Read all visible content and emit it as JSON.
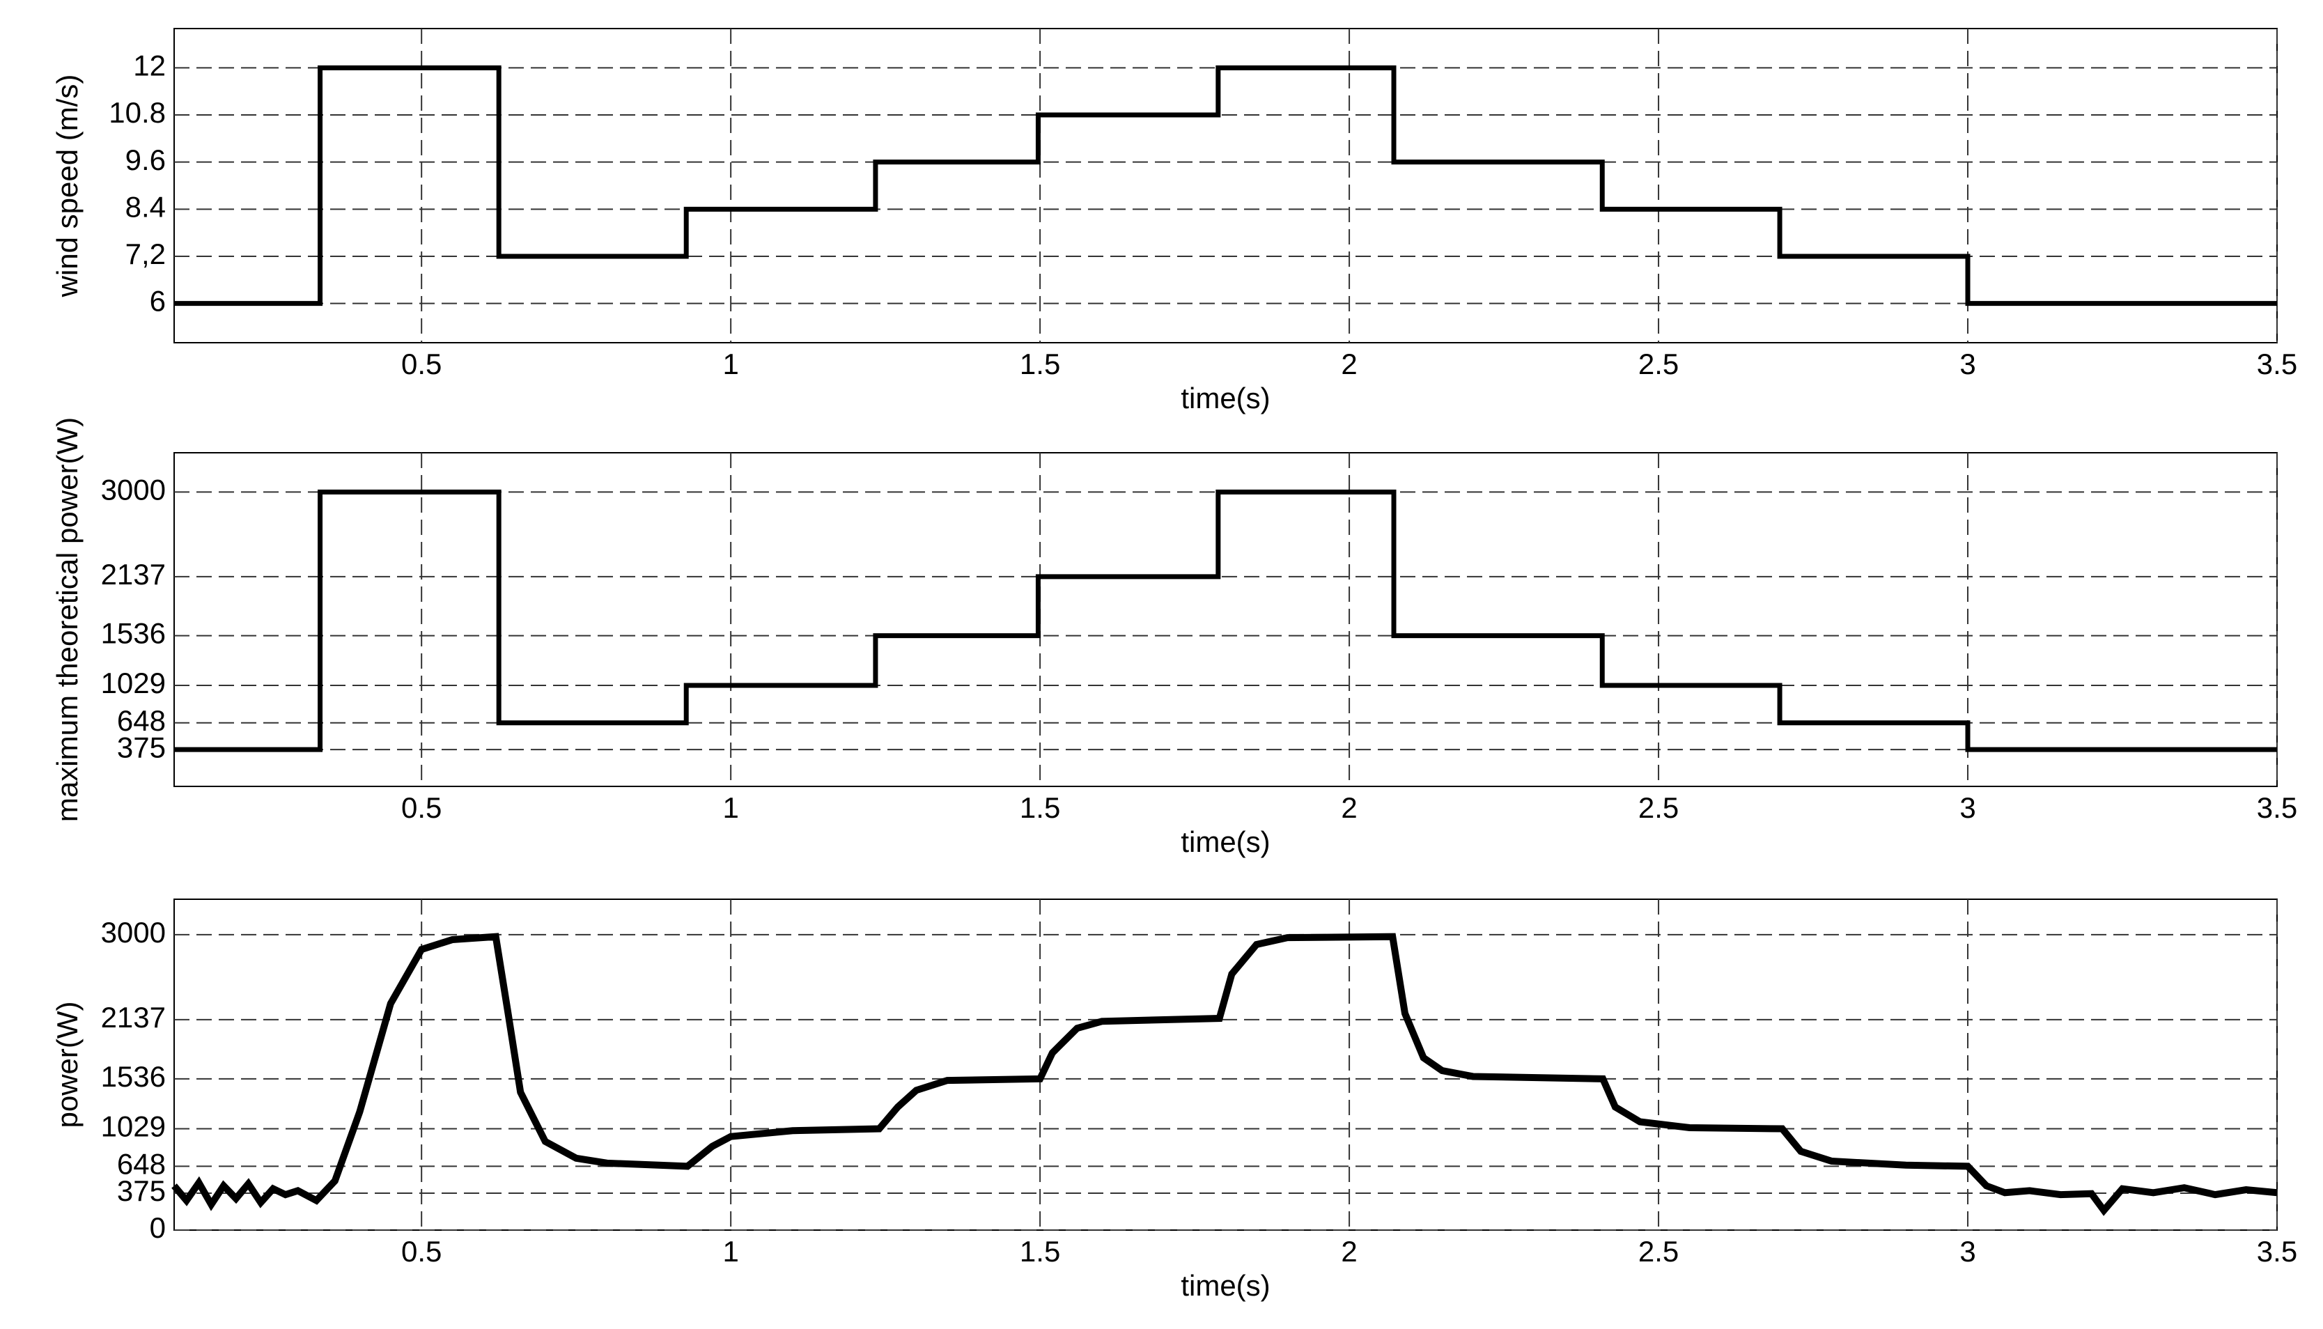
{
  "chart_data": [
    {
      "type": "line",
      "xlabel": "time(s)",
      "ylabel": "wind speed (m/s)",
      "grid": true,
      "xlim": [
        0.1,
        3.5
      ],
      "xticks": [
        0.5,
        1,
        1.5,
        2,
        2.5,
        3,
        3.5
      ],
      "ylim": [
        5,
        13
      ],
      "yticks": [
        6,
        {
          "value": 7.2,
          "label": "7,2"
        },
        8.4,
        9.6,
        10.8,
        12
      ],
      "x": [
        0.1,
        0.336,
        0.336,
        0.625,
        0.625,
        0.928,
        0.928,
        1.234,
        1.234,
        1.497,
        1.497,
        1.788,
        1.788,
        2.072,
        2.072,
        2.409,
        2.409,
        2.696,
        2.696,
        3.0,
        3.0,
        3.5
      ],
      "series": [
        {
          "color": "#000000",
          "values": [
            6,
            6,
            12,
            12,
            7.2,
            7.2,
            8.4,
            8.4,
            9.6,
            9.6,
            10.8,
            10.8,
            12,
            12,
            9.6,
            9.6,
            8.4,
            8.4,
            7.2,
            7.2,
            6,
            6
          ]
        }
      ]
    },
    {
      "type": "line",
      "xlabel": "time(s)",
      "ylabel": "maximum theoretical power(W)",
      "grid": true,
      "xlim": [
        0.1,
        3.5
      ],
      "xticks": [
        0.5,
        1,
        1.5,
        2,
        2.5,
        3,
        3.5
      ],
      "ylim": [
        0,
        3400
      ],
      "yticks": [
        375,
        648,
        1029,
        1536,
        2137,
        3000
      ],
      "x": [
        0.1,
        0.336,
        0.336,
        0.625,
        0.625,
        0.928,
        0.928,
        1.234,
        1.234,
        1.497,
        1.497,
        1.788,
        1.788,
        2.072,
        2.072,
        2.409,
        2.409,
        2.696,
        2.696,
        3.0,
        3.0,
        3.5
      ],
      "series": [
        {
          "color": "#000000",
          "values": [
            375,
            375,
            3000,
            3000,
            648,
            648,
            1029,
            1029,
            1536,
            1536,
            2137,
            2137,
            3000,
            3000,
            1536,
            1536,
            1029,
            1029,
            648,
            648,
            375,
            375
          ]
        }
      ]
    },
    {
      "type": "line",
      "xlabel": "time(s)",
      "ylabel": "power(W)",
      "grid": true,
      "xlim": [
        0.1,
        3.5
      ],
      "xticks": [
        0.5,
        1,
        1.5,
        2,
        2.5,
        3,
        3.5
      ],
      "ylim": [
        0,
        3360
      ],
      "yticks": [
        0,
        375,
        648,
        1029,
        1536,
        2137,
        3000
      ],
      "x": [
        0.1,
        0.12,
        0.14,
        0.16,
        0.18,
        0.2,
        0.22,
        0.24,
        0.26,
        0.28,
        0.3,
        0.33,
        0.36,
        0.4,
        0.45,
        0.5,
        0.55,
        0.62,
        0.64,
        0.66,
        0.7,
        0.75,
        0.8,
        0.93,
        0.97,
        1.0,
        1.1,
        1.24,
        1.27,
        1.3,
        1.35,
        1.5,
        1.52,
        1.56,
        1.6,
        1.79,
        1.81,
        1.85,
        1.9,
        2.07,
        2.09,
        2.12,
        2.15,
        2.2,
        2.41,
        2.43,
        2.47,
        2.55,
        2.7,
        2.73,
        2.78,
        2.9,
        3.0,
        3.03,
        3.06,
        3.1,
        3.15,
        3.2,
        3.22,
        3.25,
        3.3,
        3.35,
        3.4,
        3.45,
        3.5
      ],
      "series": [
        {
          "color": "#000000",
          "values": [
            450,
            300,
            480,
            260,
            450,
            320,
            470,
            280,
            420,
            360,
            400,
            300,
            500,
            1200,
            2300,
            2850,
            2950,
            2980,
            2200,
            1400,
            900,
            730,
            680,
            648,
            850,
            950,
            1010,
            1029,
            1250,
            1420,
            1520,
            1536,
            1800,
            2050,
            2120,
            2150,
            2600,
            2900,
            2970,
            2980,
            2200,
            1750,
            1620,
            1560,
            1536,
            1250,
            1100,
            1040,
            1029,
            800,
            700,
            660,
            648,
            450,
            380,
            400,
            360,
            370,
            200,
            420,
            380,
            430,
            360,
            410,
            380
          ]
        }
      ]
    }
  ]
}
